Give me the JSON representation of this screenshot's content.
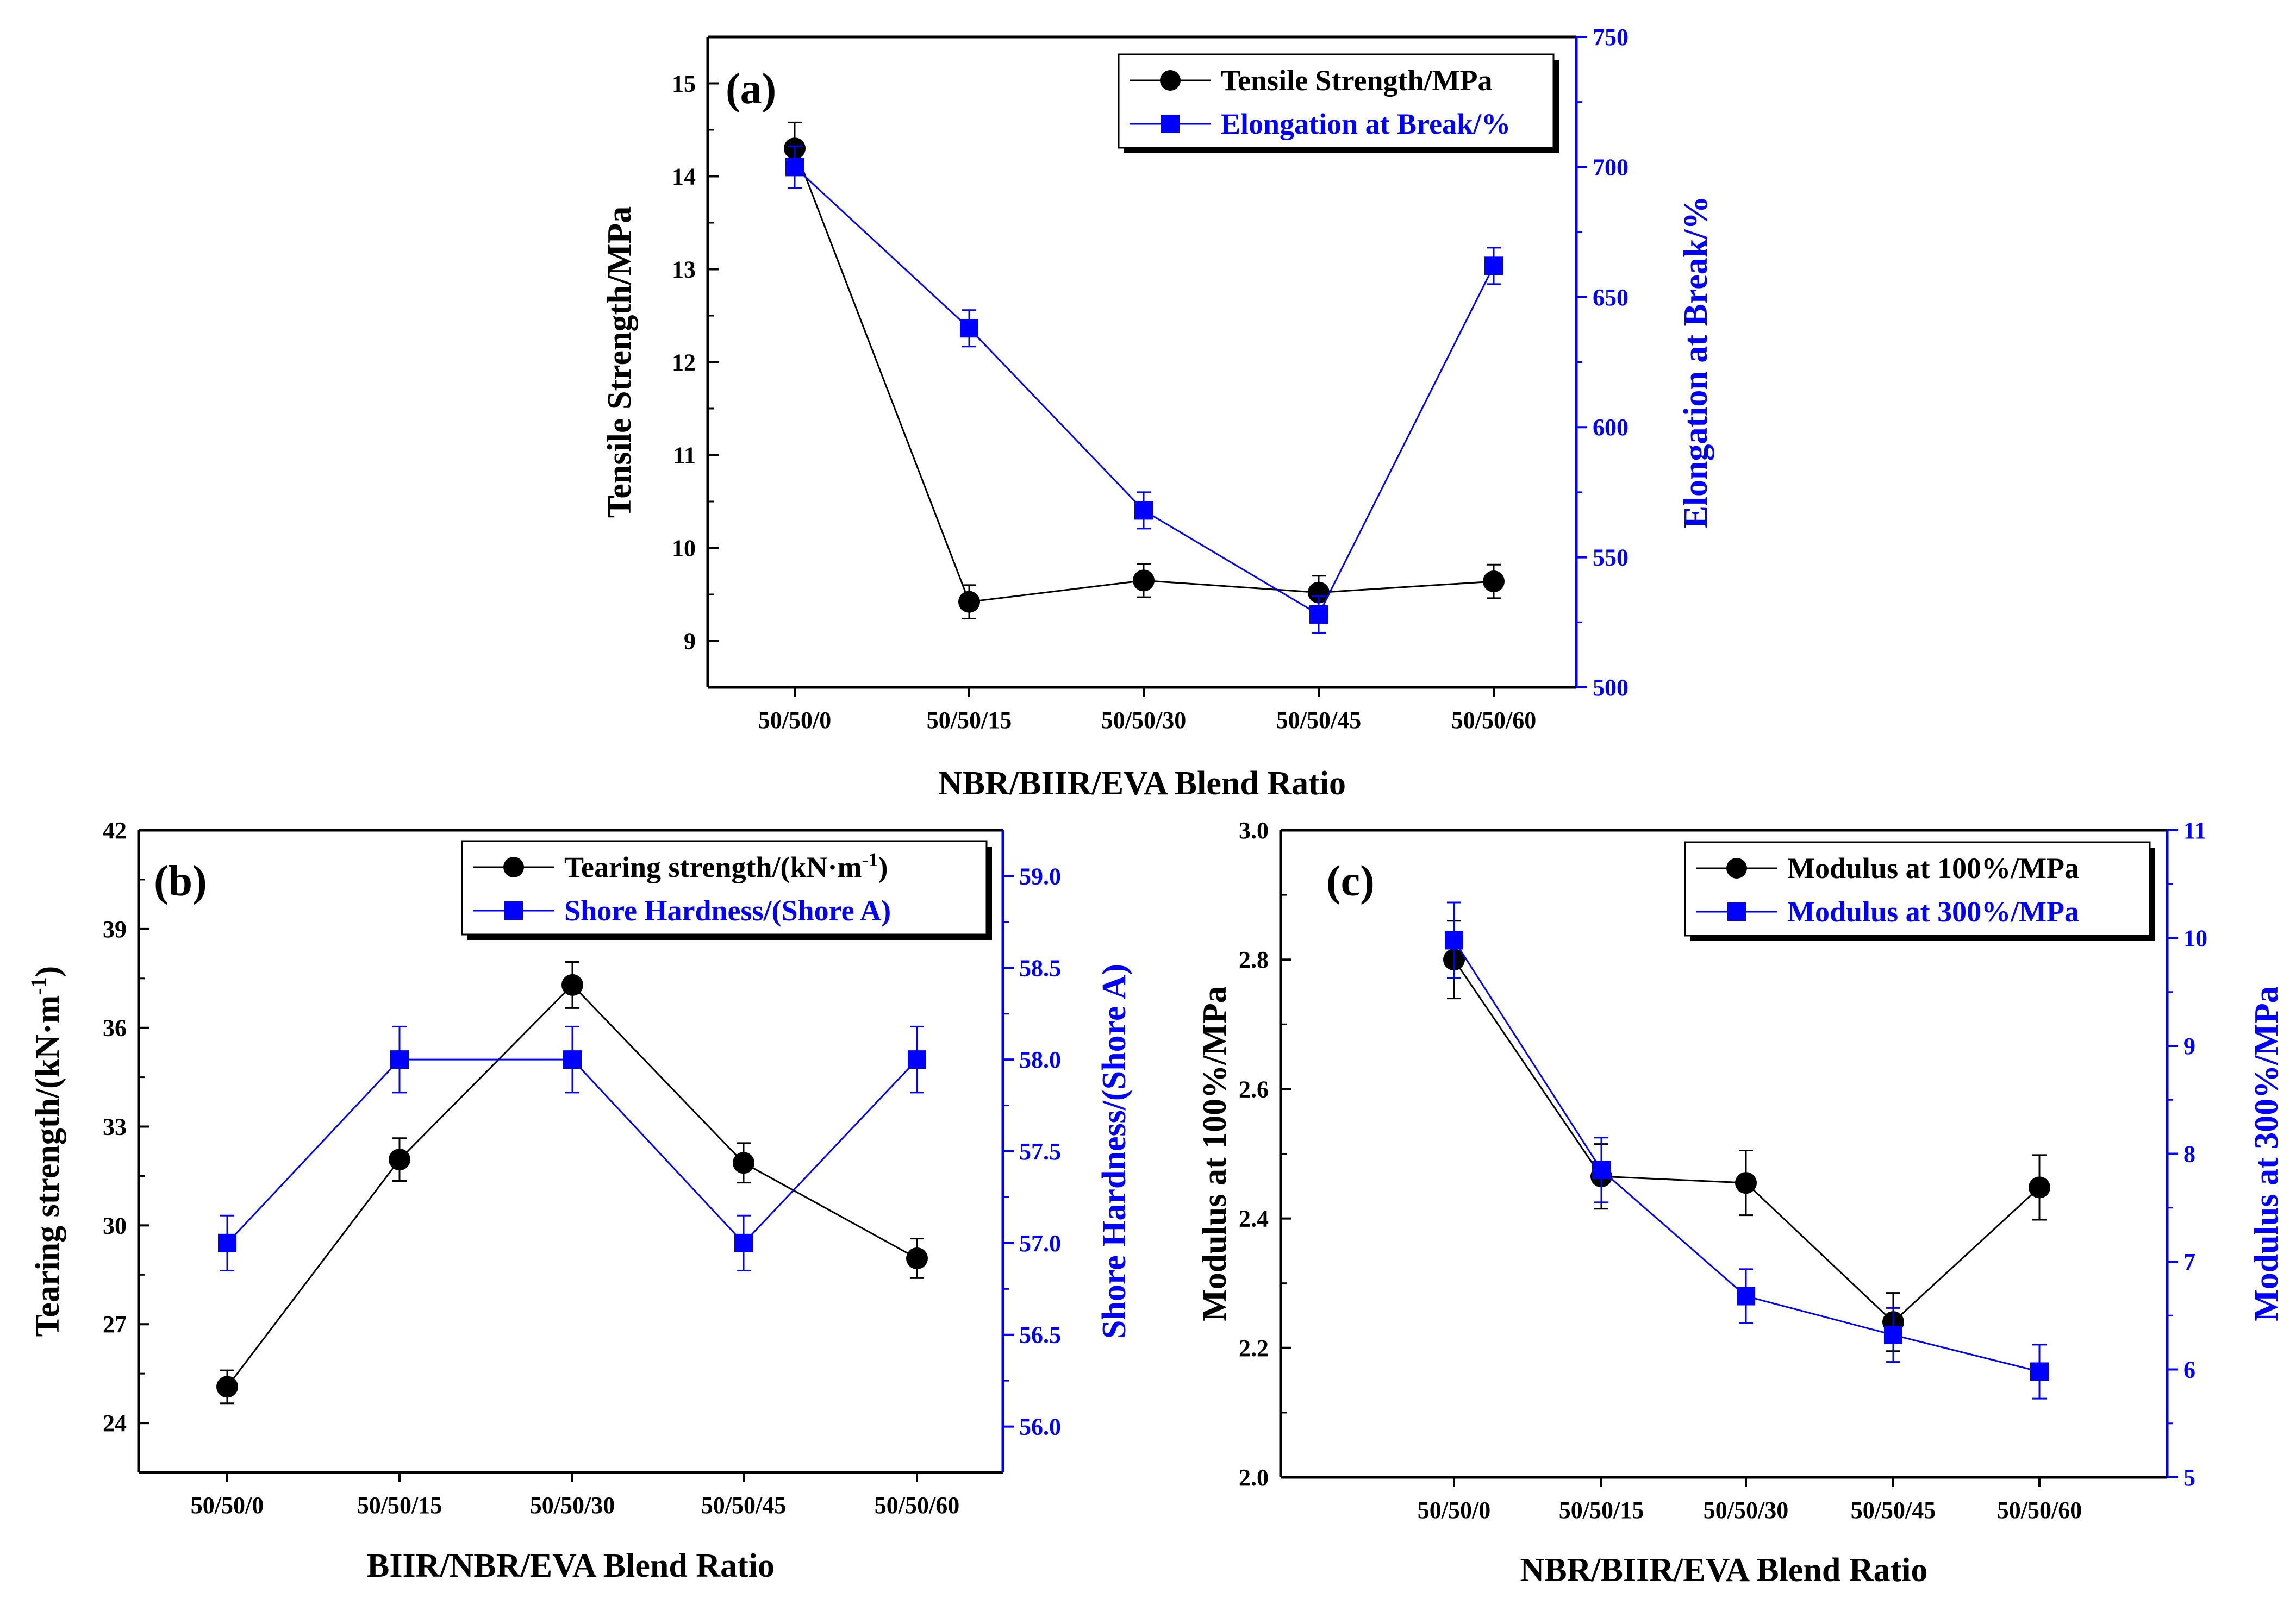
{
  "chart_data": [
    {
      "panel": "(a)",
      "type": "line",
      "categories": [
        "50/50/0",
        "50/50/15",
        "50/50/30",
        "50/50/45",
        "50/50/60"
      ],
      "xlabel": "NBR/BIIR/EVA Blend Ratio",
      "ylabel_left": "Tensile Strength/MPa",
      "ylabel_right": "Elongation at Break/%",
      "ylim_left": [
        8.5,
        15.5
      ],
      "yticks_left": [
        9,
        10,
        11,
        12,
        13,
        14,
        15
      ],
      "ylim_right": [
        500,
        750
      ],
      "yticks_right": [
        500,
        550,
        600,
        650,
        700,
        750
      ],
      "legend_position": "top-right",
      "series": [
        {
          "name": "Tensile Strength/MPa",
          "axis": "left",
          "marker": "circle",
          "color": "#000000",
          "values": [
            14.3,
            9.42,
            9.65,
            9.52,
            9.64
          ],
          "errors": [
            0.28,
            0.18,
            0.18,
            0.18,
            0.18
          ]
        },
        {
          "name": "Elongation at Break/%",
          "axis": "right",
          "marker": "square",
          "color": "#0000ff",
          "values": [
            700,
            638,
            568,
            528,
            662
          ],
          "errors": [
            8,
            7,
            7,
            7,
            7
          ]
        }
      ]
    },
    {
      "panel": "(b)",
      "type": "line",
      "categories": [
        "50/50/0",
        "50/50/15",
        "50/50/30",
        "50/50/45",
        "50/50/60"
      ],
      "xlabel": "BIIR/NBR/EVA Blend Ratio",
      "ylabel_left": "Tearing strength/(kN·m",
      "ylabel_left_sup": "-1",
      "ylabel_left_close": ")",
      "ylabel_right": "Shore Hardness/(Shore A)",
      "ylim_left": [
        22.5,
        42
      ],
      "yticks_left": [
        24,
        27,
        30,
        33,
        36,
        39,
        42
      ],
      "ylim_right": [
        55.75,
        59.25
      ],
      "yticks_right": [
        "56.0",
        "56.5",
        "57.0",
        "57.5",
        "58.0",
        "58.5",
        "59.0"
      ],
      "legend_position": "top-right",
      "series": [
        {
          "name": "Tearing strength/(kN·m",
          "name_sup": "-1",
          "name_close": ")",
          "axis": "left",
          "marker": "circle",
          "color": "#000000",
          "values": [
            25.1,
            32.0,
            37.3,
            31.9,
            29.0
          ],
          "errors": [
            0.5,
            0.65,
            0.7,
            0.6,
            0.6
          ]
        },
        {
          "name": "Shore Hardness/(Shore A)",
          "axis": "right",
          "marker": "square",
          "color": "#0000ff",
          "values": [
            57.0,
            58.0,
            58.0,
            57.0,
            58.0
          ],
          "errors": [
            0.15,
            0.18,
            0.18,
            0.15,
            0.18
          ]
        }
      ]
    },
    {
      "panel": "(c)",
      "type": "line",
      "categories": [
        "50/50/0",
        "50/50/15",
        "50/50/30",
        "50/50/45",
        "50/50/60"
      ],
      "xlabel": "NBR/BIIR/EVA Blend Ratio",
      "ylabel_left": "Modulus at 100%/MPa",
      "ylabel_right": "Modulus at 300%/MPa",
      "ylim_left": [
        2.0,
        3.0
      ],
      "yticks_left": [
        "2.0",
        "2.2",
        "2.4",
        "2.6",
        "2.8",
        "3.0"
      ],
      "ylim_right": [
        5,
        11
      ],
      "yticks_right": [
        5,
        6,
        7,
        8,
        9,
        10,
        11
      ],
      "legend_position": "top-right",
      "series": [
        {
          "name": "Modulus at 100%/MPa",
          "axis": "left",
          "marker": "circle",
          "color": "#000000",
          "values": [
            2.8,
            2.465,
            2.455,
            2.24,
            2.448
          ],
          "errors": [
            0.06,
            0.05,
            0.05,
            0.045,
            0.05
          ]
        },
        {
          "name": "Modulus at 300%/MPa",
          "axis": "right",
          "marker": "square",
          "color": "#0000ff",
          "values": [
            9.98,
            7.85,
            6.68,
            6.32,
            5.98
          ],
          "errors": [
            0.35,
            0.3,
            0.25,
            0.25,
            0.25
          ]
        }
      ]
    }
  ]
}
